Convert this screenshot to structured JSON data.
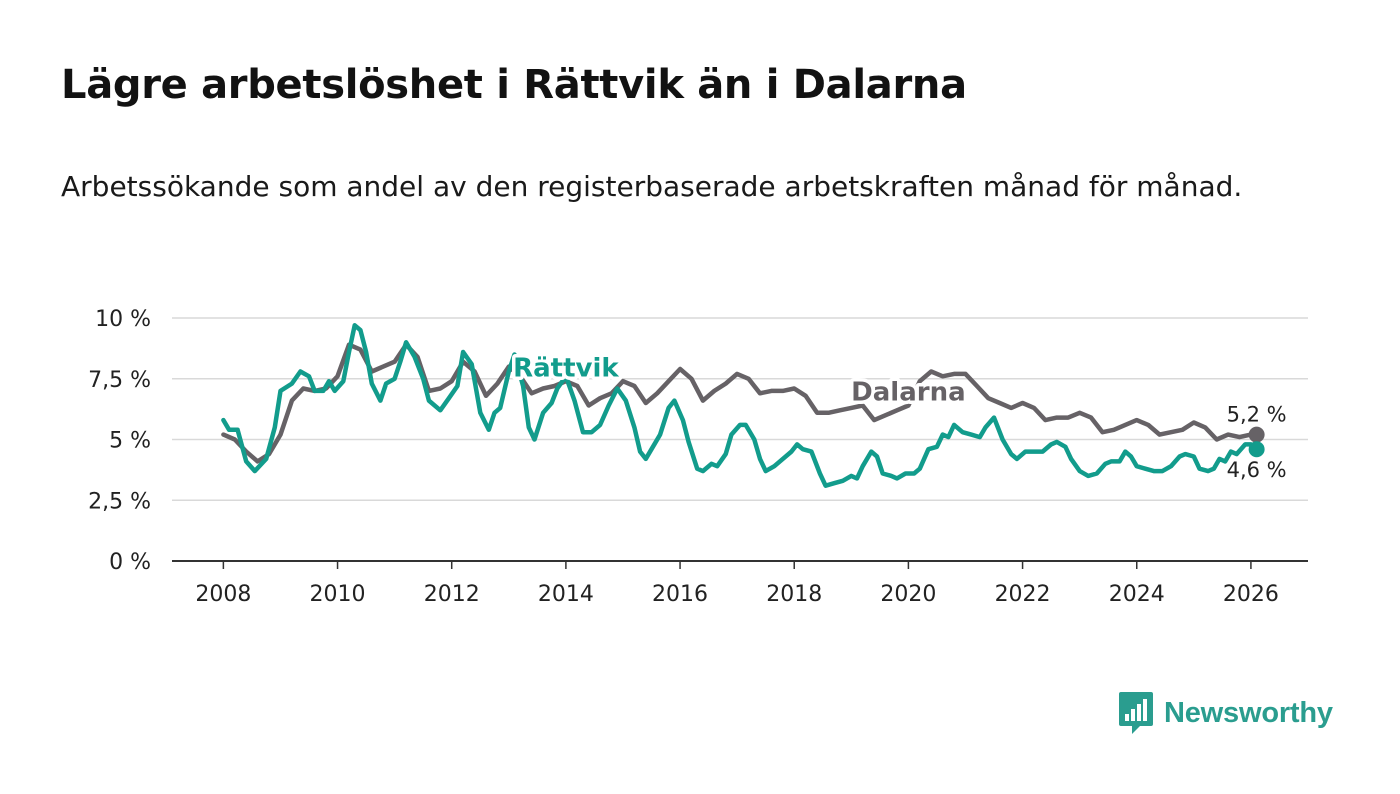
{
  "title": "Lägre arbetslöshet i Rättvik än i Dalarna",
  "subtitle": "Arbetssökande som andel av den registerbaserade arbetskraften månad för månad.",
  "logo": {
    "text": "Newsworthy",
    "icon": "bar-chart-speech-bubble-icon"
  },
  "colors": {
    "rattvik": "#129c8c",
    "dalarna": "#666266",
    "grid": "#d9d9d9",
    "axis": "#333333",
    "text": "#222222",
    "logo": "#2a9d8f"
  },
  "chart_data": {
    "type": "line",
    "title": "Lägre arbetslöshet i Rättvik än i Dalarna",
    "xlabel": "",
    "ylabel": "",
    "xlim": [
      2007.1,
      2027
    ],
    "ylim": [
      0,
      10
    ],
    "grid": true,
    "x_ticks": [
      2008,
      2010,
      2012,
      2014,
      2016,
      2018,
      2020,
      2022,
      2024,
      2026
    ],
    "y_ticks": [
      {
        "value": 0,
        "label": "0 %"
      },
      {
        "value": 2.5,
        "label": "2,5 %"
      },
      {
        "value": 5,
        "label": "5 %"
      },
      {
        "value": 7.5,
        "label": "7,5 %"
      },
      {
        "value": 10,
        "label": "10 %"
      }
    ],
    "series": [
      {
        "name": "Dalarna",
        "color": "#666266",
        "last_value_label": "5,2 %",
        "points": [
          [
            2008.0,
            5.2
          ],
          [
            2008.2,
            5.0
          ],
          [
            2008.4,
            4.5
          ],
          [
            2008.6,
            4.1
          ],
          [
            2008.8,
            4.4
          ],
          [
            2009.0,
            5.2
          ],
          [
            2009.2,
            6.6
          ],
          [
            2009.4,
            7.1
          ],
          [
            2009.6,
            7.0
          ],
          [
            2009.8,
            7.1
          ],
          [
            2010.0,
            7.6
          ],
          [
            2010.2,
            8.9
          ],
          [
            2010.4,
            8.7
          ],
          [
            2010.6,
            7.8
          ],
          [
            2010.8,
            8.0
          ],
          [
            2011.0,
            8.2
          ],
          [
            2011.2,
            8.9
          ],
          [
            2011.4,
            8.4
          ],
          [
            2011.6,
            7.0
          ],
          [
            2011.8,
            7.1
          ],
          [
            2012.0,
            7.4
          ],
          [
            2012.2,
            8.2
          ],
          [
            2012.4,
            7.8
          ],
          [
            2012.6,
            6.8
          ],
          [
            2012.8,
            7.3
          ],
          [
            2013.0,
            8.0
          ],
          [
            2013.2,
            7.6
          ],
          [
            2013.4,
            6.9
          ],
          [
            2013.6,
            7.1
          ],
          [
            2013.8,
            7.2
          ],
          [
            2014.0,
            7.4
          ],
          [
            2014.2,
            7.2
          ],
          [
            2014.4,
            6.4
          ],
          [
            2014.6,
            6.7
          ],
          [
            2014.8,
            6.9
          ],
          [
            2015.0,
            7.4
          ],
          [
            2015.2,
            7.2
          ],
          [
            2015.4,
            6.5
          ],
          [
            2015.6,
            6.9
          ],
          [
            2015.8,
            7.4
          ],
          [
            2016.0,
            7.9
          ],
          [
            2016.2,
            7.5
          ],
          [
            2016.4,
            6.6
          ],
          [
            2016.6,
            7.0
          ],
          [
            2016.8,
            7.3
          ],
          [
            2017.0,
            7.7
          ],
          [
            2017.2,
            7.5
          ],
          [
            2017.4,
            6.9
          ],
          [
            2017.6,
            7.0
          ],
          [
            2017.8,
            7.0
          ],
          [
            2018.0,
            7.1
          ],
          [
            2018.2,
            6.8
          ],
          [
            2018.4,
            6.1
          ],
          [
            2018.6,
            6.1
          ],
          [
            2018.8,
            6.2
          ],
          [
            2019.0,
            6.3
          ],
          [
            2019.2,
            6.4
          ],
          [
            2019.4,
            5.8
          ],
          [
            2019.6,
            6.0
          ],
          [
            2019.8,
            6.2
          ],
          [
            2020.0,
            6.4
          ],
          [
            2020.2,
            7.4
          ],
          [
            2020.4,
            7.8
          ],
          [
            2020.6,
            7.6
          ],
          [
            2020.8,
            7.7
          ],
          [
            2021.0,
            7.7
          ],
          [
            2021.2,
            7.2
          ],
          [
            2021.4,
            6.7
          ],
          [
            2021.6,
            6.5
          ],
          [
            2021.8,
            6.3
          ],
          [
            2022.0,
            6.5
          ],
          [
            2022.2,
            6.3
          ],
          [
            2022.4,
            5.8
          ],
          [
            2022.6,
            5.9
          ],
          [
            2022.8,
            5.9
          ],
          [
            2023.0,
            6.1
          ],
          [
            2023.2,
            5.9
          ],
          [
            2023.4,
            5.3
          ],
          [
            2023.6,
            5.4
          ],
          [
            2023.8,
            5.6
          ],
          [
            2024.0,
            5.8
          ],
          [
            2024.2,
            5.6
          ],
          [
            2024.4,
            5.2
          ],
          [
            2024.6,
            5.3
          ],
          [
            2024.8,
            5.4
          ],
          [
            2025.0,
            5.7
          ],
          [
            2025.2,
            5.5
          ],
          [
            2025.4,
            5.0
          ],
          [
            2025.6,
            5.2
          ],
          [
            2025.8,
            5.1
          ],
          [
            2026.0,
            5.2
          ],
          [
            2026.1,
            5.2
          ]
        ]
      },
      {
        "name": "Rättvik",
        "color": "#129c8c",
        "last_value_label": "4,6 %",
        "points": [
          [
            2008.0,
            5.8
          ],
          [
            2008.1,
            5.4
          ],
          [
            2008.25,
            5.4
          ],
          [
            2008.4,
            4.1
          ],
          [
            2008.55,
            3.7
          ],
          [
            2008.75,
            4.2
          ],
          [
            2008.9,
            5.5
          ],
          [
            2009.0,
            7.0
          ],
          [
            2009.2,
            7.3
          ],
          [
            2009.35,
            7.8
          ],
          [
            2009.5,
            7.6
          ],
          [
            2009.6,
            7.0
          ],
          [
            2009.75,
            7.0
          ],
          [
            2009.85,
            7.4
          ],
          [
            2009.95,
            7.0
          ],
          [
            2010.1,
            7.4
          ],
          [
            2010.2,
            8.6
          ],
          [
            2010.3,
            9.7
          ],
          [
            2010.4,
            9.5
          ],
          [
            2010.5,
            8.6
          ],
          [
            2010.6,
            7.3
          ],
          [
            2010.75,
            6.6
          ],
          [
            2010.85,
            7.3
          ],
          [
            2011.0,
            7.5
          ],
          [
            2011.1,
            8.2
          ],
          [
            2011.2,
            9.0
          ],
          [
            2011.35,
            8.4
          ],
          [
            2011.5,
            7.5
          ],
          [
            2011.6,
            6.6
          ],
          [
            2011.8,
            6.2
          ],
          [
            2011.95,
            6.7
          ],
          [
            2012.1,
            7.2
          ],
          [
            2012.2,
            8.6
          ],
          [
            2012.35,
            8.1
          ],
          [
            2012.5,
            6.1
          ],
          [
            2012.65,
            5.4
          ],
          [
            2012.75,
            6.1
          ],
          [
            2012.85,
            6.3
          ],
          [
            2013.0,
            7.8
          ],
          [
            2013.1,
            8.5
          ],
          [
            2013.25,
            7.2
          ],
          [
            2013.35,
            5.5
          ],
          [
            2013.45,
            5.0
          ],
          [
            2013.6,
            6.1
          ],
          [
            2013.75,
            6.5
          ],
          [
            2013.85,
            7.1
          ],
          [
            2014.0,
            7.6
          ],
          [
            2014.15,
            6.6
          ],
          [
            2014.3,
            5.3
          ],
          [
            2014.45,
            5.3
          ],
          [
            2014.6,
            5.6
          ],
          [
            2014.75,
            6.4
          ],
          [
            2014.9,
            7.1
          ],
          [
            2015.05,
            6.6
          ],
          [
            2015.2,
            5.5
          ],
          [
            2015.3,
            4.5
          ],
          [
            2015.4,
            4.2
          ],
          [
            2015.5,
            4.6
          ],
          [
            2015.65,
            5.2
          ],
          [
            2015.8,
            6.3
          ],
          [
            2015.9,
            6.6
          ],
          [
            2016.05,
            5.8
          ],
          [
            2016.15,
            4.9
          ],
          [
            2016.3,
            3.8
          ],
          [
            2016.4,
            3.7
          ],
          [
            2016.55,
            4.0
          ],
          [
            2016.65,
            3.9
          ],
          [
            2016.8,
            4.4
          ],
          [
            2016.9,
            5.2
          ],
          [
            2017.05,
            5.6
          ],
          [
            2017.15,
            5.6
          ],
          [
            2017.3,
            5.0
          ],
          [
            2017.4,
            4.2
          ],
          [
            2017.5,
            3.7
          ],
          [
            2017.65,
            3.9
          ],
          [
            2017.8,
            4.2
          ],
          [
            2017.95,
            4.5
          ],
          [
            2018.05,
            4.8
          ],
          [
            2018.15,
            4.6
          ],
          [
            2018.3,
            4.5
          ],
          [
            2018.45,
            3.6
          ],
          [
            2018.55,
            3.1
          ],
          [
            2018.7,
            3.2
          ],
          [
            2018.85,
            3.3
          ],
          [
            2019.0,
            3.5
          ],
          [
            2019.1,
            3.4
          ],
          [
            2019.2,
            3.9
          ],
          [
            2019.35,
            4.5
          ],
          [
            2019.45,
            4.3
          ],
          [
            2019.55,
            3.6
          ],
          [
            2019.7,
            3.5
          ],
          [
            2019.8,
            3.4
          ],
          [
            2019.95,
            3.6
          ],
          [
            2020.1,
            3.6
          ],
          [
            2020.2,
            3.8
          ],
          [
            2020.35,
            4.6
          ],
          [
            2020.5,
            4.7
          ],
          [
            2020.6,
            5.2
          ],
          [
            2020.7,
            5.1
          ],
          [
            2020.8,
            5.6
          ],
          [
            2020.95,
            5.3
          ],
          [
            2021.1,
            5.2
          ],
          [
            2021.25,
            5.1
          ],
          [
            2021.35,
            5.5
          ],
          [
            2021.5,
            5.9
          ],
          [
            2021.65,
            5.0
          ],
          [
            2021.8,
            4.4
          ],
          [
            2021.9,
            4.2
          ],
          [
            2022.05,
            4.5
          ],
          [
            2022.2,
            4.5
          ],
          [
            2022.35,
            4.5
          ],
          [
            2022.5,
            4.8
          ],
          [
            2022.6,
            4.9
          ],
          [
            2022.75,
            4.7
          ],
          [
            2022.85,
            4.2
          ],
          [
            2023.0,
            3.7
          ],
          [
            2023.15,
            3.5
          ],
          [
            2023.3,
            3.6
          ],
          [
            2023.45,
            4.0
          ],
          [
            2023.55,
            4.1
          ],
          [
            2023.7,
            4.1
          ],
          [
            2023.8,
            4.5
          ],
          [
            2023.9,
            4.3
          ],
          [
            2024.0,
            3.9
          ],
          [
            2024.15,
            3.8
          ],
          [
            2024.3,
            3.7
          ],
          [
            2024.45,
            3.7
          ],
          [
            2024.6,
            3.9
          ],
          [
            2024.75,
            4.3
          ],
          [
            2024.85,
            4.4
          ],
          [
            2025.0,
            4.3
          ],
          [
            2025.1,
            3.8
          ],
          [
            2025.25,
            3.7
          ],
          [
            2025.35,
            3.8
          ],
          [
            2025.45,
            4.2
          ],
          [
            2025.55,
            4.1
          ],
          [
            2025.65,
            4.5
          ],
          [
            2025.75,
            4.4
          ],
          [
            2025.9,
            4.8
          ],
          [
            2026.0,
            4.8
          ],
          [
            2026.1,
            4.6
          ]
        ]
      }
    ],
    "annotations": [
      {
        "text": "Rättvik",
        "series": "Rättvik",
        "x": 2014.0,
        "y": 7.6
      },
      {
        "text": "Dalarna",
        "series": "Dalarna",
        "x": 2020.0,
        "y": 6.6
      }
    ]
  }
}
